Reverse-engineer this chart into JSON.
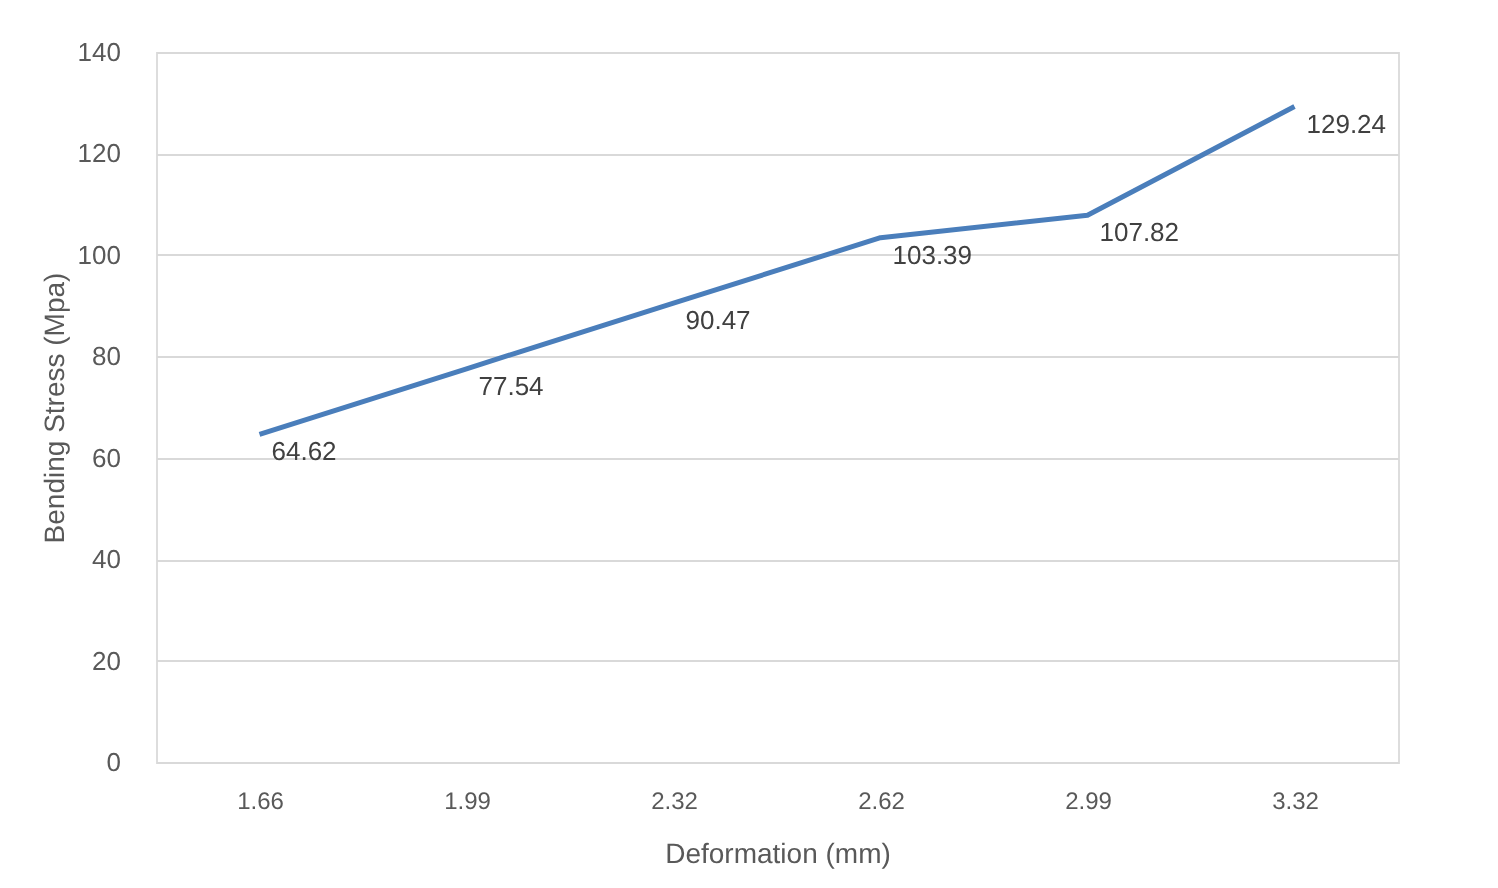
{
  "chart_data": {
    "type": "line",
    "xlabel": "Deformation (mm)",
    "ylabel": "Bending Stress (Mpa)",
    "categories": [
      "1.66",
      "1.99",
      "2.32",
      "2.62",
      "2.99",
      "3.32"
    ],
    "series": [
      {
        "color": "#4a7ebb",
        "values": [
          64.62,
          77.54,
          90.47,
          103.39,
          107.82,
          129.24
        ]
      }
    ],
    "ylim": [
      0,
      140
    ],
    "yticks": [
      0,
      20,
      40,
      60,
      80,
      100,
      120,
      140
    ],
    "grid": "y",
    "data_labels": true,
    "legend": false
  }
}
